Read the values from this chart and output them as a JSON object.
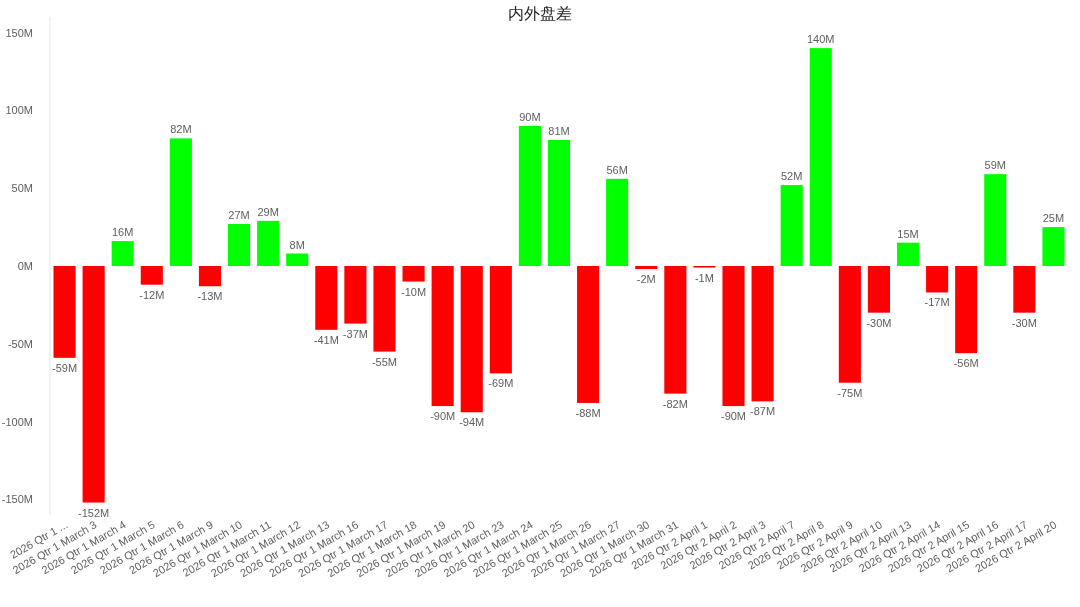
{
  "chart_data": {
    "type": "bar",
    "title": "内外盘差",
    "categories": [
      "2026 Qtr 1 ...",
      "2026 Qtr 1 March 3",
      "2026 Qtr 1 March 4",
      "2026 Qtr 1 March 5",
      "2026 Qtr 1 March 6",
      "2026 Qtr 1 March 9",
      "2026 Qtr 1 March 10",
      "2026 Qtr 1 March 11",
      "2026 Qtr 1 March 12",
      "2026 Qtr 1 March 13",
      "2026 Qtr 1 March 16",
      "2026 Qtr 1 March 17",
      "2026 Qtr 1 March 18",
      "2026 Qtr 1 March 19",
      "2026 Qtr 1 March 20",
      "2026 Qtr 1 March 23",
      "2026 Qtr 1 March 24",
      "2026 Qtr 1 March 25",
      "2026 Qtr 1 March 26",
      "2026 Qtr 1 March 27",
      "2026 Qtr 1 March 30",
      "2026 Qtr 1 March 31",
      "2026 Qtr 2 April 1",
      "2026 Qtr 2 April 2",
      "2026 Qtr 2 April 3",
      "2026 Qtr 2 April 7",
      "2026 Qtr 2 April 8",
      "2026 Qtr 2 April 9",
      "2026 Qtr 2 April 10",
      "2026 Qtr 2 April 13",
      "2026 Qtr 2 April 14",
      "2026 Qtr 2 April 15",
      "2026 Qtr 2 April 16",
      "2026 Qtr 2 April 17",
      "2026 Qtr 2 April 20"
    ],
    "values": [
      -59,
      -152,
      16,
      -12,
      82,
      -13,
      27,
      29,
      8,
      -41,
      -37,
      -55,
      -10,
      -90,
      -94,
      -69,
      90,
      81,
      -88,
      56,
      -2,
      -82,
      -1,
      -90,
      -87,
      52,
      140,
      -75,
      -30,
      15,
      -17,
      -56,
      59,
      -30,
      25
    ],
    "value_labels": [
      "-59M",
      "-152M",
      "16M",
      "-12M",
      "82M",
      "-13M",
      "27M",
      "29M",
      "8M",
      "-41M",
      "-37M",
      "-55M",
      "-10M",
      "-90M",
      "-94M",
      "-69M",
      "90M",
      "81M",
      "-88M",
      "56M",
      "-2M",
      "-82M",
      "-1M",
      "-90M",
      "-87M",
      "52M",
      "140M",
      "-75M",
      "-30M",
      "15M",
      "-17M",
      "-56M",
      "59M",
      "-30M",
      "25M"
    ],
    "colors": [
      "#ff0000",
      "#ff0000",
      "#00ff00",
      "#ff0000",
      "#00ff00",
      "#ff0000",
      "#00ff00",
      "#00ff00",
      "#00ff00",
      "#ff0000",
      "#ff0000",
      "#ff0000",
      "#ff0000",
      "#ff0000",
      "#ff0000",
      "#ff0000",
      "#00ff00",
      "#00ff00",
      "#ff0000",
      "#00ff00",
      "#ff0000",
      "#ff0000",
      "#ff0000",
      "#ff0000",
      "#ff0000",
      "#00ff00",
      "#00ff00",
      "#ff0000",
      "#ff0000",
      "#00ff00",
      "#ff0000",
      "#ff0000",
      "#00ff00",
      "#ff0000",
      "#00ff00"
    ],
    "ylim": [
      -160,
      160
    ],
    "yticks": [
      {
        "value": -150,
        "label": "-150M"
      },
      {
        "value": -100,
        "label": "-100M"
      },
      {
        "value": -50,
        "label": "-50M"
      },
      {
        "value": 0,
        "label": "0M"
      },
      {
        "value": 50,
        "label": "50M"
      },
      {
        "value": 100,
        "label": "100M"
      },
      {
        "value": 150,
        "label": "150M"
      }
    ],
    "grid": false
  }
}
